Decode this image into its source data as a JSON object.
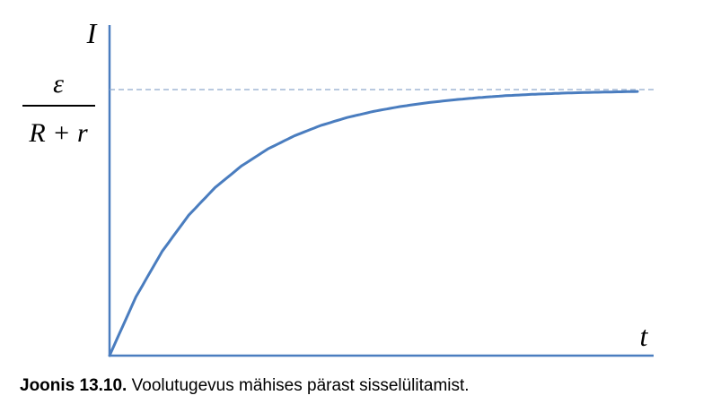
{
  "chart_data": {
    "type": "line",
    "title": "",
    "xlabel": "t",
    "ylabel": "I",
    "asymptote_label": {
      "numerator": "ε",
      "denominator": "R + r"
    },
    "xlim": [
      0,
      5
    ],
    "ylim": [
      0,
      1.0
    ],
    "asymptote_y": 1.0,
    "asymptote_style": "dashed",
    "grid": false,
    "series": [
      {
        "color": "#4a7dbf",
        "x": [
          0,
          0.25,
          0.5,
          0.75,
          1,
          1.25,
          1.5,
          1.75,
          2,
          2.25,
          2.5,
          2.75,
          3,
          3.25,
          3.5,
          3.75,
          4,
          4.25,
          4.5,
          4.75,
          5
        ],
        "y": [
          0,
          0.221,
          0.393,
          0.528,
          0.632,
          0.713,
          0.777,
          0.826,
          0.865,
          0.895,
          0.918,
          0.936,
          0.95,
          0.961,
          0.97,
          0.977,
          0.982,
          0.986,
          0.989,
          0.991,
          0.993
        ]
      }
    ]
  },
  "colors": {
    "axis": "#4a7dbf",
    "curve": "#4a7dbf",
    "asymptote": "#8fa9cc"
  },
  "caption": {
    "label": "Joonis 13.10.",
    "text": " Voolutugevus mähises pärast sisselülitamist."
  }
}
